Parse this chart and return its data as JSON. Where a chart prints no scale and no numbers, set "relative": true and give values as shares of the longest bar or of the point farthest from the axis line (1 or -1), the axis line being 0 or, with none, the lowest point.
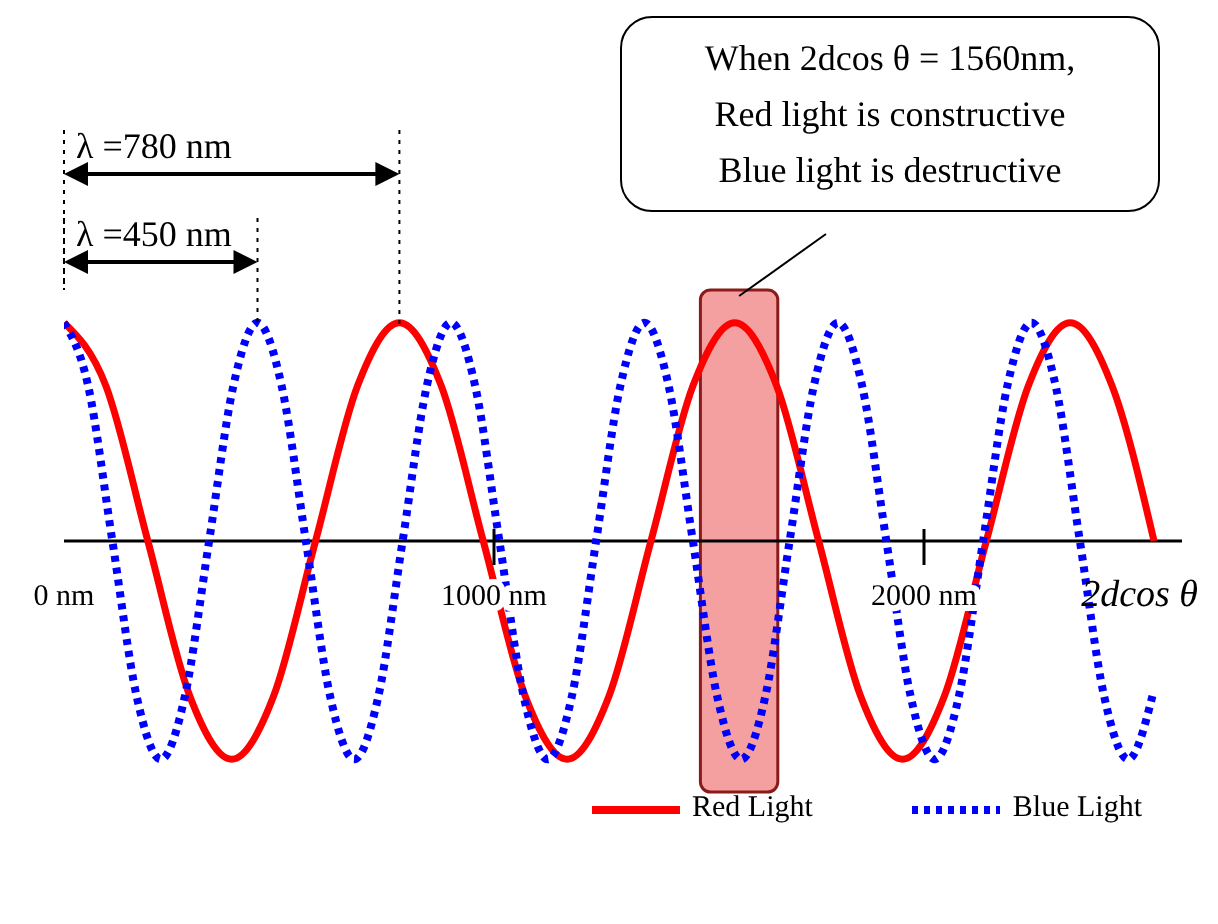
{
  "chart_data": {
    "type": "line",
    "relative": true,
    "xlabel": "2dcos θ",
    "xlim": [
      0,
      2600
    ],
    "xticks": [
      {
        "value": 0,
        "label": "0 nm"
      },
      {
        "value": 1000,
        "label": "1000 nm"
      },
      {
        "value": 2000,
        "label": "2000 nm"
      }
    ],
    "tick_labels": "x",
    "grid": false,
    "legend": "bottom",
    "marker": "none",
    "bands": [
      {
        "axis": "x",
        "from": 1480,
        "to": 1660,
        "color": "#f4a0a0"
      }
    ],
    "annotations": [
      "λ =780 nm",
      "λ =450 nm",
      "When 2dcos θ = 1560nm,\nRed light is constructive\nBlue light is destructive"
    ],
    "series": [
      {
        "name": "Red Light",
        "color": "#ff0000",
        "line_style": "solid",
        "x": [
          0,
          97.5,
          195,
          292.5,
          390,
          487.5,
          585,
          682.5,
          780,
          877.5,
          975,
          1072.5,
          1170,
          1267.5,
          1365,
          1462.5,
          1560,
          1657.5,
          1755,
          1852.5,
          1950,
          2047.5,
          2145,
          2242.5,
          2340,
          2437.5,
          2535
        ],
        "values": [
          1,
          0.71,
          0,
          -0.71,
          -1,
          -0.71,
          0,
          0.71,
          1,
          0.71,
          0,
          -0.71,
          -1,
          -0.71,
          0,
          0.71,
          1,
          0.71,
          0,
          -0.71,
          -1,
          -0.71,
          0,
          0.71,
          1,
          0.71,
          0
        ]
      },
      {
        "name": "Blue Light",
        "color": "#0000ff",
        "line_style": "dotted",
        "x": [
          0,
          56.25,
          112.5,
          168.75,
          225,
          281.25,
          337.5,
          393.75,
          450,
          506.25,
          562.5,
          618.75,
          675,
          731.25,
          787.5,
          843.75,
          900,
          956.25,
          1012.5,
          1068.75,
          1125,
          1181.25,
          1237.5,
          1293.75,
          1350,
          1406.25,
          1462.5,
          1518.75,
          1575,
          1631.25,
          1687.5,
          1743.75,
          1800,
          1856.25,
          1912.5,
          1968.75,
          2025,
          2081.25,
          2137.5,
          2193.75,
          2250,
          2306.25,
          2362.5,
          2418.75,
          2475,
          2531.25
        ],
        "values": [
          1,
          0.71,
          0,
          -0.71,
          -1,
          -0.71,
          0,
          0.71,
          1,
          0.71,
          0,
          -0.71,
          -1,
          -0.71,
          0,
          0.71,
          1,
          0.71,
          0,
          -0.71,
          -1,
          -0.71,
          0,
          0.71,
          1,
          0.71,
          0,
          -0.71,
          -1,
          -0.71,
          0,
          0.71,
          1,
          0.71,
          0,
          -0.71,
          -1,
          -0.71,
          0,
          0.71,
          1,
          0.71,
          0,
          -0.71,
          -1,
          -0.71
        ]
      }
    ]
  }
}
